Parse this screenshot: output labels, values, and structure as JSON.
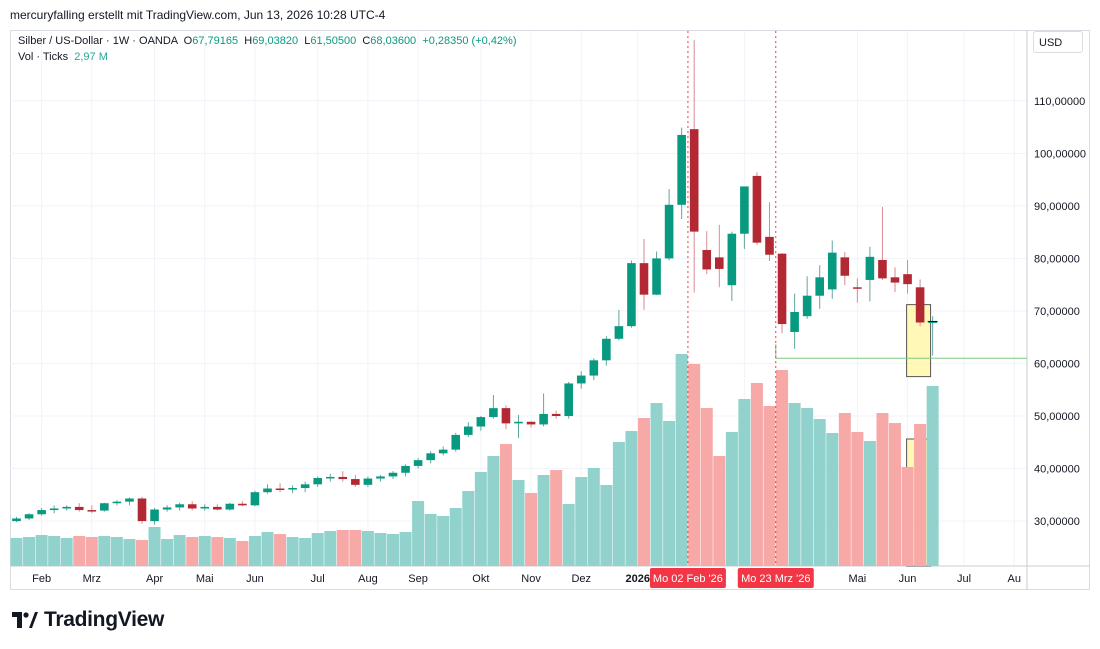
{
  "header": {
    "text": "mercuryfalling erstellt mit TradingView.com, Jun 13, 2026 10:28 UTC-4"
  },
  "legend": {
    "symbol": "Silber / US-Dollar · 1W · OANDA",
    "open_label": "O",
    "open": "67,79165",
    "high_label": "H",
    "high": "69,03820",
    "low_label": "L",
    "low": "61,50500",
    "close_label": "C",
    "close": "68,03600",
    "change": "+0,28350 (+0,42%)",
    "vol_label": "Vol · Ticks",
    "vol_value": "2,97 M"
  },
  "currency_label": "USD",
  "brand": {
    "name": "TradingView"
  },
  "colors": {
    "up": "#089981",
    "down": "#b22833",
    "vol_up": "#92d2cc",
    "vol_down": "#f7a9a7",
    "marker": "#f23645",
    "highlight": "#fff59d"
  },
  "chart_data": {
    "type": "candlestick",
    "price_axis": {
      "ylim": [
        20.5,
        121
      ],
      "ticks": [
        "110,00000",
        "100,00000",
        "90,00000",
        "80,00000",
        "70,00000",
        "60,00000",
        "50,00000",
        "40,00000",
        "30,00000"
      ],
      "tick_values": [
        110,
        100,
        90,
        80,
        70,
        60,
        50,
        40,
        30
      ]
    },
    "x_axis": {
      "labels": [
        {
          "i": 2,
          "text": "Feb"
        },
        {
          "i": 6,
          "text": "Mrz"
        },
        {
          "i": 11,
          "text": "Apr"
        },
        {
          "i": 15,
          "text": "Mai"
        },
        {
          "i": 19,
          "text": "Jun"
        },
        {
          "i": 24,
          "text": "Jul"
        },
        {
          "i": 28,
          "text": "Aug"
        },
        {
          "i": 32,
          "text": "Sep"
        },
        {
          "i": 37,
          "text": "Okt"
        },
        {
          "i": 41,
          "text": "Nov"
        },
        {
          "i": 45,
          "text": "Dez"
        },
        {
          "i": 49.5,
          "text": "2026"
        },
        {
          "i": 58,
          "text": "M"
        },
        {
          "i": 67,
          "text": "Mai"
        },
        {
          "i": 71,
          "text": "Jun"
        },
        {
          "i": 75.5,
          "text": "Jul"
        },
        {
          "i": 79.5,
          "text": "Au"
        }
      ]
    },
    "markers": [
      {
        "i": 53.5,
        "label": "Mo 02 Feb '26"
      },
      {
        "i": 60.5,
        "label": "Mo 23 Mrz '26"
      }
    ],
    "horizontal_line": {
      "value": 61.0,
      "from_i": 60.5
    },
    "highlight_box_price": {
      "i": 71.8,
      "from": 57.5,
      "to": 71.2
    },
    "highlight_box_volume": {
      "i": 71.8
    },
    "volume_range": [
      0,
      100
    ],
    "candles": [
      {
        "o": 30.0,
        "h": 30.8,
        "l": 29.8,
        "c": 30.5,
        "v": 28
      },
      {
        "o": 30.5,
        "h": 31.5,
        "l": 30.2,
        "c": 31.3,
        "v": 29
      },
      {
        "o": 31.3,
        "h": 32.5,
        "l": 31.0,
        "c": 32.1,
        "v": 31
      },
      {
        "o": 32.1,
        "h": 33.0,
        "l": 31.5,
        "c": 32.4,
        "v": 30
      },
      {
        "o": 32.4,
        "h": 33.0,
        "l": 32.0,
        "c": 32.7,
        "v": 28
      },
      {
        "o": 32.7,
        "h": 33.4,
        "l": 31.8,
        "c": 32.1,
        "v": 30
      },
      {
        "o": 32.1,
        "h": 33.0,
        "l": 31.5,
        "c": 32.0,
        "v": 29
      },
      {
        "o": 32.0,
        "h": 33.5,
        "l": 31.8,
        "c": 33.4,
        "v": 30
      },
      {
        "o": 33.4,
        "h": 34.0,
        "l": 33.0,
        "c": 33.7,
        "v": 29
      },
      {
        "o": 33.7,
        "h": 34.5,
        "l": 33.0,
        "c": 34.3,
        "v": 27
      },
      {
        "o": 34.3,
        "h": 34.6,
        "l": 29.5,
        "c": 30.0,
        "v": 26
      },
      {
        "o": 30.0,
        "h": 32.5,
        "l": 29.3,
        "c": 32.2,
        "v": 39
      },
      {
        "o": 32.2,
        "h": 33.0,
        "l": 31.8,
        "c": 32.6,
        "v": 27
      },
      {
        "o": 32.6,
        "h": 33.5,
        "l": 32.0,
        "c": 33.2,
        "v": 31
      },
      {
        "o": 33.2,
        "h": 33.8,
        "l": 32.0,
        "c": 32.4,
        "v": 29
      },
      {
        "o": 32.4,
        "h": 33.2,
        "l": 32.0,
        "c": 32.7,
        "v": 30
      },
      {
        "o": 32.7,
        "h": 33.2,
        "l": 32.0,
        "c": 32.2,
        "v": 29
      },
      {
        "o": 32.2,
        "h": 33.5,
        "l": 32.0,
        "c": 33.3,
        "v": 28
      },
      {
        "o": 33.3,
        "h": 33.8,
        "l": 32.8,
        "c": 33.0,
        "v": 25
      },
      {
        "o": 33.0,
        "h": 35.8,
        "l": 32.8,
        "c": 35.5,
        "v": 30
      },
      {
        "o": 35.5,
        "h": 37.0,
        "l": 35.2,
        "c": 36.2,
        "v": 34
      },
      {
        "o": 36.2,
        "h": 37.2,
        "l": 35.5,
        "c": 36.0,
        "v": 32
      },
      {
        "o": 36.0,
        "h": 36.8,
        "l": 35.3,
        "c": 36.3,
        "v": 29
      },
      {
        "o": 36.3,
        "h": 37.5,
        "l": 35.5,
        "c": 37.0,
        "v": 28
      },
      {
        "o": 37.0,
        "h": 38.5,
        "l": 36.5,
        "c": 38.2,
        "v": 33
      },
      {
        "o": 38.2,
        "h": 39.0,
        "l": 37.5,
        "c": 38.4,
        "v": 35
      },
      {
        "o": 38.4,
        "h": 39.5,
        "l": 37.5,
        "c": 38.0,
        "v": 36
      },
      {
        "o": 38.0,
        "h": 38.8,
        "l": 36.5,
        "c": 36.9,
        "v": 36
      },
      {
        "o": 36.9,
        "h": 38.5,
        "l": 36.5,
        "c": 38.1,
        "v": 35
      },
      {
        "o": 38.1,
        "h": 38.8,
        "l": 37.5,
        "c": 38.5,
        "v": 33
      },
      {
        "o": 38.5,
        "h": 39.5,
        "l": 38.0,
        "c": 39.2,
        "v": 32
      },
      {
        "o": 39.2,
        "h": 40.8,
        "l": 38.5,
        "c": 40.5,
        "v": 34
      },
      {
        "o": 40.5,
        "h": 42.0,
        "l": 40.0,
        "c": 41.6,
        "v": 65
      },
      {
        "o": 41.6,
        "h": 43.3,
        "l": 41.0,
        "c": 42.9,
        "v": 52
      },
      {
        "o": 42.9,
        "h": 44.2,
        "l": 42.5,
        "c": 43.6,
        "v": 50
      },
      {
        "o": 43.6,
        "h": 46.8,
        "l": 43.2,
        "c": 46.4,
        "v": 58
      },
      {
        "o": 46.4,
        "h": 48.8,
        "l": 46.0,
        "c": 48.0,
        "v": 75
      },
      {
        "o": 48.0,
        "h": 50.0,
        "l": 47.2,
        "c": 49.8,
        "v": 94
      },
      {
        "o": 49.8,
        "h": 54.0,
        "l": 49.5,
        "c": 51.5,
        "v": 110
      },
      {
        "o": 51.5,
        "h": 52.0,
        "l": 47.5,
        "c": 48.6,
        "v": 122
      },
      {
        "o": 48.6,
        "h": 50.2,
        "l": 45.8,
        "c": 48.9,
        "v": 86
      },
      {
        "o": 48.9,
        "h": 49.0,
        "l": 47.8,
        "c": 48.4,
        "v": 73
      },
      {
        "o": 48.4,
        "h": 54.3,
        "l": 48.0,
        "c": 50.4,
        "v": 91
      },
      {
        "o": 50.4,
        "h": 51.0,
        "l": 49.5,
        "c": 50.0,
        "v": 96
      },
      {
        "o": 50.0,
        "h": 56.5,
        "l": 49.5,
        "c": 56.2,
        "v": 62
      },
      {
        "o": 56.2,
        "h": 58.5,
        "l": 55.2,
        "c": 57.7,
        "v": 89
      },
      {
        "o": 57.7,
        "h": 61.0,
        "l": 56.8,
        "c": 60.6,
        "v": 98
      },
      {
        "o": 60.6,
        "h": 65.2,
        "l": 59.6,
        "c": 64.7,
        "v": 81
      },
      {
        "o": 64.7,
        "h": 70.2,
        "l": 64.4,
        "c": 67.1,
        "v": 124
      },
      {
        "o": 67.1,
        "h": 79.6,
        "l": 66.8,
        "c": 79.1,
        "v": 135
      },
      {
        "o": 79.1,
        "h": 83.7,
        "l": 70.2,
        "c": 73.1,
        "v": 148
      },
      {
        "o": 73.1,
        "h": 81.3,
        "l": 73.0,
        "c": 80.0,
        "v": 163
      },
      {
        "o": 80.0,
        "h": 93.2,
        "l": 79.6,
        "c": 90.2,
        "v": 145
      },
      {
        "o": 90.2,
        "h": 104.9,
        "l": 87.5,
        "c": 103.5,
        "v": 212
      },
      {
        "o": 104.6,
        "h": 121.6,
        "l": 73.5,
        "c": 85.1,
        "v": 202
      },
      {
        "o": 81.6,
        "h": 85.2,
        "l": 77.0,
        "c": 77.9,
        "v": 158
      },
      {
        "o": 80.2,
        "h": 86.4,
        "l": 74.5,
        "c": 78.0,
        "v": 110
      },
      {
        "o": 74.9,
        "h": 85.1,
        "l": 71.9,
        "c": 84.7,
        "v": 134
      },
      {
        "o": 84.7,
        "h": 93.4,
        "l": 81.8,
        "c": 93.7,
        "v": 167
      },
      {
        "o": 95.7,
        "h": 96.4,
        "l": 82.6,
        "c": 83.0,
        "v": 183
      },
      {
        "o": 84.1,
        "h": 90.7,
        "l": 79.5,
        "c": 80.7,
        "v": 160
      },
      {
        "o": 80.9,
        "h": 81.0,
        "l": 65.7,
        "c": 67.5,
        "v": 196
      },
      {
        "o": 66.0,
        "h": 73.3,
        "l": 62.8,
        "c": 69.8,
        "v": 163
      },
      {
        "o": 69.0,
        "h": 76.6,
        "l": 68.5,
        "c": 72.9,
        "v": 158
      },
      {
        "o": 72.9,
        "h": 78.7,
        "l": 70.4,
        "c": 76.4,
        "v": 147
      },
      {
        "o": 74.1,
        "h": 83.4,
        "l": 72.3,
        "c": 81.1,
        "v": 133
      },
      {
        "o": 80.2,
        "h": 81.2,
        "l": 74.9,
        "c": 76.7,
        "v": 153
      },
      {
        "o": 74.5,
        "h": 76.2,
        "l": 71.6,
        "c": 74.4,
        "v": 134
      },
      {
        "o": 75.9,
        "h": 82.2,
        "l": 71.8,
        "c": 80.3,
        "v": 125
      },
      {
        "o": 79.7,
        "h": 89.8,
        "l": 75.9,
        "c": 76.2,
        "v": 153
      },
      {
        "o": 76.4,
        "h": 78.3,
        "l": 73.6,
        "c": 75.4,
        "v": 143
      },
      {
        "o": 77.0,
        "h": 79.7,
        "l": 73.3,
        "c": 75.1,
        "v": 99
      },
      {
        "o": 74.5,
        "h": 76.0,
        "l": 67.1,
        "c": 67.8,
        "v": 142
      },
      {
        "o": 67.8,
        "h": 69.0,
        "l": 61.5,
        "c": 68.0,
        "v": 180
      }
    ]
  }
}
